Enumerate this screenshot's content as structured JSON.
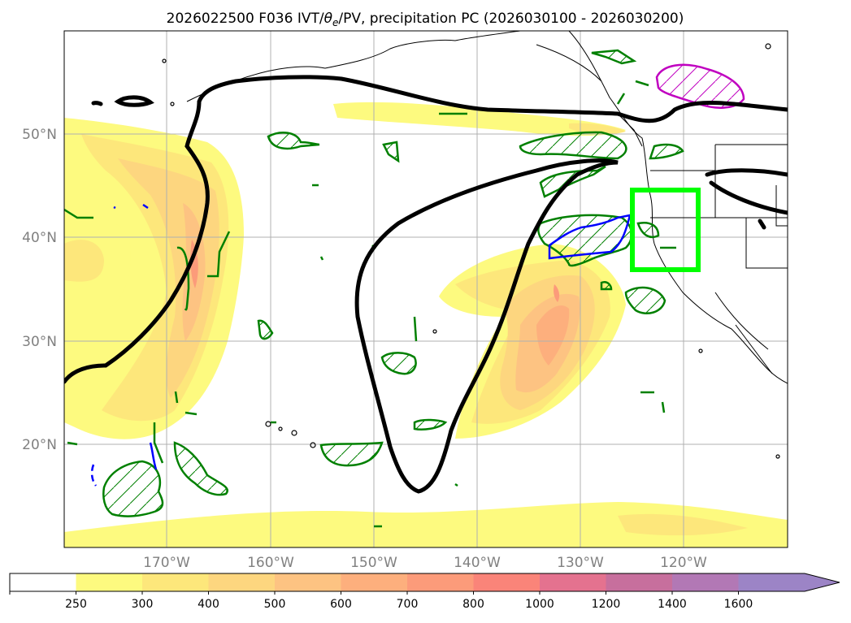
{
  "title": "2026022500 F036 IVT/θe/PV, precipitation PC (2026030100 - 2026030200)",
  "title_parts": {
    "prefix": "2026022500 F036 IVT/",
    "theta": "θ",
    "theta_sub": "e",
    "suffix": "/PV, precipitation PC (2026030100 - 2026030200)"
  },
  "map": {
    "lon_range": [
      -180,
      -110
    ],
    "lat_range": [
      10,
      60
    ],
    "lat_ticks": [
      {
        "value": 50,
        "label": "50°N"
      },
      {
        "value": 40,
        "label": "40°N"
      },
      {
        "value": 30,
        "label": "30°N"
      },
      {
        "value": 20,
        "label": "20°N"
      }
    ],
    "lon_ticks": [
      {
        "value": -170,
        "label": "170°W"
      },
      {
        "value": -160,
        "label": "160°W"
      },
      {
        "value": -150,
        "label": "150°W"
      },
      {
        "value": -140,
        "label": "140°W"
      },
      {
        "value": -130,
        "label": "130°W"
      },
      {
        "value": -120,
        "label": "120°W"
      }
    ],
    "grid": true,
    "region_box": {
      "lon": [
        -125,
        -118.5
      ],
      "lat": [
        37,
        44.5
      ],
      "color": "#00ff00"
    }
  },
  "colorbar": {
    "extend": "max",
    "levels": [
      "250",
      "300",
      "400",
      "500",
      "600",
      "700",
      "800",
      "1000",
      "1200",
      "1400",
      "1600"
    ],
    "colors": [
      "#ffffff",
      "#fdfa7f",
      "#fde77b",
      "#fdd67f",
      "#fdc382",
      "#fdaf7d",
      "#fc9b7a",
      "#fa8479",
      "#e4728f",
      "#c76f9d",
      "#b278b5",
      "#9c84c6"
    ]
  },
  "colors": {
    "theta_e_contour": "#000000",
    "pv_hatch_green": "#008000",
    "pv_blue": "#0000ff",
    "pv_magenta": "#c000c0",
    "grid": "#b0b0b0"
  }
}
